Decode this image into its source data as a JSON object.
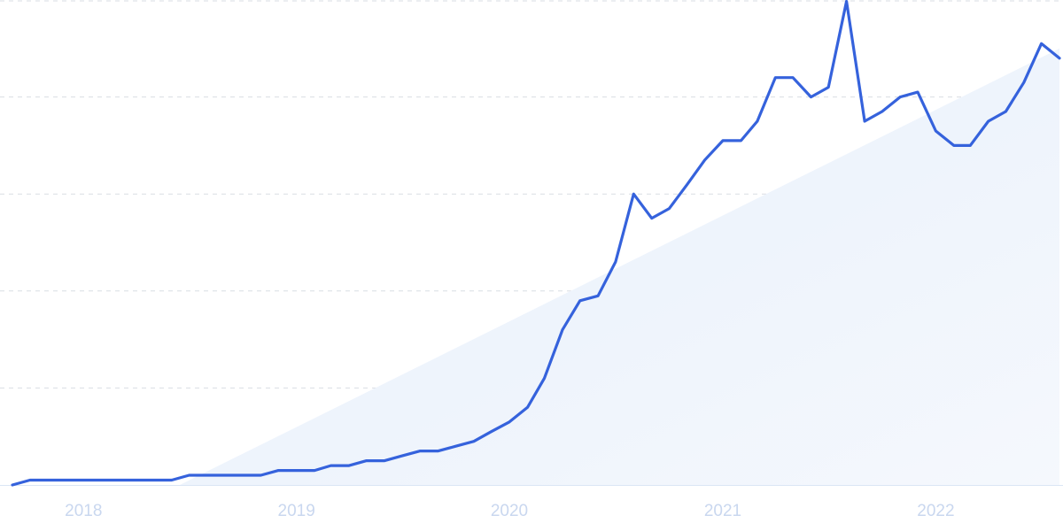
{
  "chart_data": {
    "type": "line",
    "title": "",
    "xlabel": "",
    "ylabel": "",
    "x_range": [
      "2017-09-01",
      "2022-08-01"
    ],
    "ylim": [
      0,
      100
    ],
    "grid": {
      "horizontal": true,
      "vertical": false,
      "style": "dashed"
    },
    "y_gridlines": [
      0,
      20,
      40,
      60,
      80,
      100
    ],
    "x_tick_labels": [
      "2018",
      "2019",
      "2020",
      "2021",
      "2022"
    ],
    "x_tick_dates": [
      "2018-01-01",
      "2019-01-01",
      "2020-01-01",
      "2021-01-01",
      "2022-01-01"
    ],
    "trend": {
      "type": "linear",
      "start": {
        "date": "2018-06-15",
        "value": 0
      },
      "end": {
        "date": "2022-08-01",
        "value": 90
      }
    },
    "colors": {
      "line": "#3562dc",
      "trend_fill_start": "#e6effb",
      "trend_fill_end": "#f5f8fd",
      "gridline": "#d9dde3",
      "baseline": "#dbe6f5",
      "tick_label": "#c9d7ef"
    },
    "series": [
      {
        "x": [
          "2017-09-01",
          "2017-10-01",
          "2017-11-01",
          "2017-12-01",
          "2018-01-01",
          "2018-02-01",
          "2018-03-01",
          "2018-04-01",
          "2018-05-01",
          "2018-06-01",
          "2018-07-01",
          "2018-08-01",
          "2018-09-01",
          "2018-10-01",
          "2018-11-01",
          "2018-12-01",
          "2019-01-01",
          "2019-02-01",
          "2019-03-01",
          "2019-04-01",
          "2019-05-01",
          "2019-06-01",
          "2019-07-01",
          "2019-08-01",
          "2019-09-01",
          "2019-10-01",
          "2019-11-01",
          "2019-12-01",
          "2020-01-01",
          "2020-02-01",
          "2020-03-01",
          "2020-04-01",
          "2020-05-01",
          "2020-06-01",
          "2020-07-01",
          "2020-08-01",
          "2020-09-01",
          "2020-10-01",
          "2020-11-01",
          "2020-12-01",
          "2021-01-01",
          "2021-02-01",
          "2021-03-01",
          "2021-04-01",
          "2021-05-01",
          "2021-06-01",
          "2021-07-01",
          "2021-08-01",
          "2021-09-01",
          "2021-10-01",
          "2021-11-01",
          "2021-12-01",
          "2022-01-01",
          "2022-02-01",
          "2022-03-01",
          "2022-04-01",
          "2022-05-01",
          "2022-06-01",
          "2022-07-01",
          "2022-08-01"
        ],
        "values": [
          0,
          1,
          1,
          1,
          1,
          1,
          1,
          1,
          1,
          1,
          2,
          2,
          2,
          2,
          2,
          3,
          3,
          3,
          4,
          4,
          5,
          5,
          6,
          7,
          7,
          8,
          9,
          11,
          13,
          16,
          22,
          32,
          38,
          39,
          46,
          60,
          55,
          57,
          62,
          67,
          71,
          71,
          75,
          84,
          84,
          80,
          82,
          100,
          75,
          77,
          80,
          81,
          73,
          70,
          70,
          75,
          77,
          83,
          91,
          88
        ]
      }
    ]
  }
}
